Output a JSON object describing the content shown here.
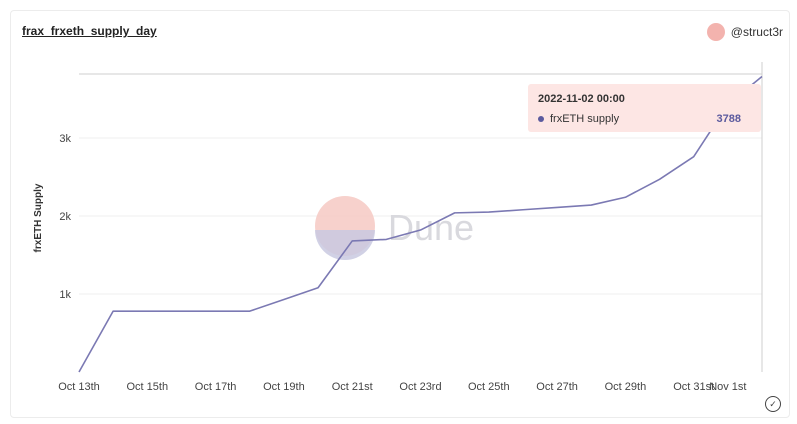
{
  "chart_data": {
    "type": "line",
    "title": "frax_frxeth_supply_day",
    "author": "@struct3r",
    "ylabel": "frxETH Supply",
    "xlabel": "",
    "ylim": [
      0,
      4000
    ],
    "yticks": [
      {
        "value": 1000,
        "label": "1k"
      },
      {
        "value": 2000,
        "label": "2k"
      },
      {
        "value": 3000,
        "label": "3k"
      }
    ],
    "xticks": [
      "Oct 13th",
      "Oct 15th",
      "Oct 17th",
      "Oct 19th",
      "Oct 21st",
      "Oct 23rd",
      "Oct 25th",
      "Oct 27th",
      "Oct 29th",
      "Oct 31st",
      "Nov 1st"
    ],
    "xtick_days": [
      0,
      2,
      4,
      6,
      8,
      10,
      12,
      14,
      16,
      18,
      19
    ],
    "series": [
      {
        "name": "frxETH supply",
        "color": "#7b79b3",
        "x": [
          "Oct 13th",
          "Oct 14th",
          "Oct 15th",
          "Oct 16th",
          "Oct 17th",
          "Oct 18th",
          "Oct 19th",
          "Oct 20th",
          "Oct 21st",
          "Oct 22nd",
          "Oct 23rd",
          "Oct 24th",
          "Oct 25th",
          "Oct 26th",
          "Oct 27th",
          "Oct 28th",
          "Oct 29th",
          "Oct 30th",
          "Oct 31st",
          "Nov 1st",
          "Nov 2nd"
        ],
        "values": [
          0,
          780,
          780,
          780,
          780,
          780,
          930,
          1080,
          1680,
          1700,
          1820,
          2040,
          2050,
          2080,
          2110,
          2140,
          2240,
          2470,
          2760,
          3430,
          3788
        ]
      }
    ],
    "grid": true,
    "tooltip": {
      "title": "2022-11-02 00:00",
      "series_name": "frxETH supply",
      "value": "3788"
    },
    "watermark": "Dune"
  }
}
